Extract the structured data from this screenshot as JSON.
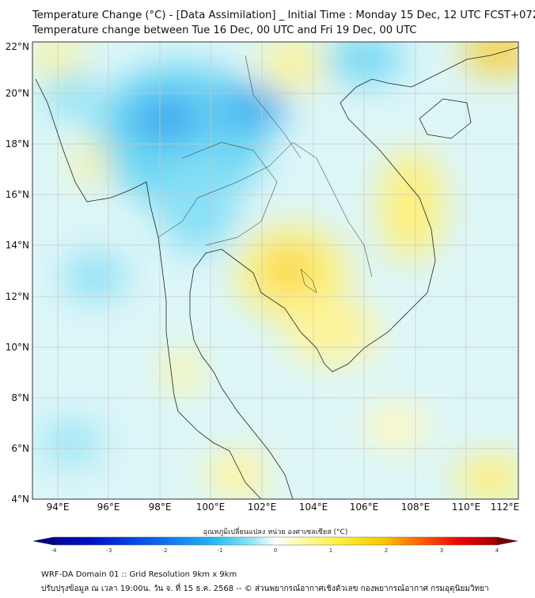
{
  "header": {
    "title": "Temperature Change (°C) - [Data Assimilation] _ Initial Time : Monday 15 Dec, 12 UTC FCST+072",
    "subtitle": "Temperature change between Tue 16 Dec, 00 UTC and Fri 19 Dec, 00 UTC"
  },
  "map": {
    "lat_labels": [
      "4°N",
      "6°N",
      "8°N",
      "10°N",
      "12°N",
      "14°N",
      "16°N",
      "18°N",
      "20°N",
      "22°N"
    ],
    "lon_labels": [
      "94°E",
      "96°E",
      "98°E",
      "100°E",
      "102°E",
      "104°E",
      "106°E",
      "108°E",
      "110°E",
      "112°E"
    ],
    "colors": {
      "cold_dark": "#1e78d8",
      "cold": "#3cc8f0",
      "neutral": "#dff8fa",
      "warm": "#fff27a",
      "warm_dark": "#f5c400"
    }
  },
  "colorbar": {
    "title": "อุณหภูมิเปลี่ยนแปลง หน่วย องศาเซลเซียส (°C)",
    "ticks": [
      "-4",
      "-3",
      "-2",
      "-1",
      "0",
      "1",
      "2",
      "3",
      "4"
    ]
  },
  "footer": {
    "line1": "WRF-DA Domain 01 :: Grid Resolution 9km x 9km",
    "line2": "ปรับปรุงข้อมูล ณ เวลา 19:00น. วัน จ. ที่ 15 ธ.ค. 2568 -- © ส่วนพยากรณ์อากาศเชิงตัวเลข กองพยากรณ์อากาศ กรมอุตุนิยมวิทยา"
  }
}
